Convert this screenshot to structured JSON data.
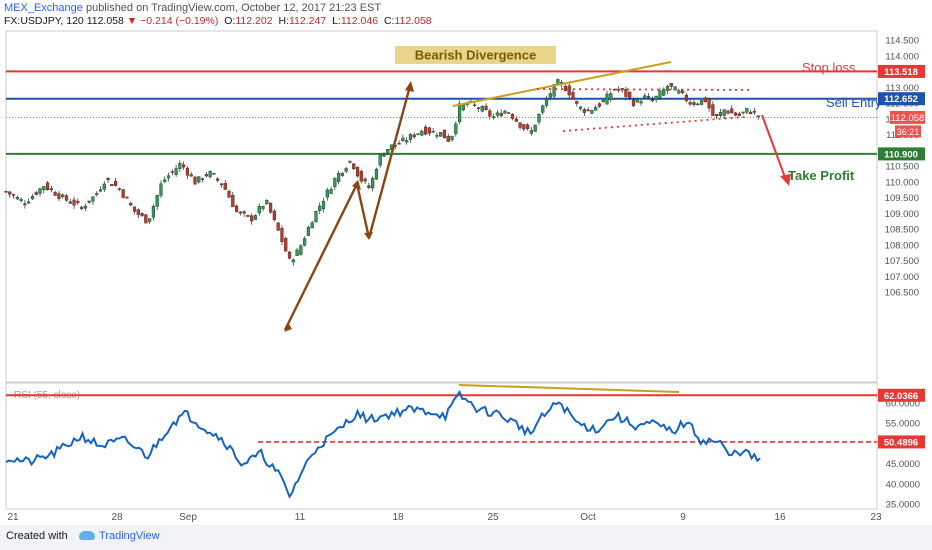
{
  "header": {
    "publisher": "MEX_Exchange",
    "published_text": "published on TradingView.com, October 12, 2017 21:23 EST",
    "symbol": "FX:USDJPY, 120",
    "last": "112.058",
    "change": "−0.214 (−0.19%)",
    "o_label": "O:",
    "o": "112.202",
    "h_label": "H:",
    "h": "112.247",
    "l_label": "L:",
    "l": "112.046",
    "c_label": "C:",
    "c": "112.058"
  },
  "footer": {
    "created_with": "Created with",
    "brand": "TradingView"
  },
  "colors": {
    "stop": "#e53935",
    "entry": "#1e54a8",
    "target": "#2e7d32",
    "div": "#c8a020",
    "arrow": "#8b4513",
    "rsi": "#1565c0"
  },
  "chart_data": [
    {
      "type": "candlestick",
      "symbol": "FX:USDJPY",
      "interval": "120",
      "ylim": [
        106.5,
        114.5
      ],
      "y_ticks": [
        "114.500",
        "114.000",
        "113.500",
        "113.000",
        "112.500",
        "112.000",
        "111.500",
        "111.000",
        "110.500",
        "110.000",
        "109.500",
        "109.000",
        "108.500",
        "108.000",
        "107.500",
        "107.000",
        "106.500"
      ],
      "x_ticks": [
        "21",
        "28",
        "Sep",
        "11",
        "18",
        "25",
        "Oct",
        "9",
        "16",
        "23"
      ],
      "price_path": [
        {
          "t": 0,
          "p": 109.7
        },
        {
          "t": 4,
          "p": 109.35
        },
        {
          "t": 8,
          "p": 109.9
        },
        {
          "t": 12,
          "p": 109.5
        },
        {
          "t": 16,
          "p": 109.2
        },
        {
          "t": 19,
          "p": 109.6
        },
        {
          "t": 21,
          "p": 110.1
        },
        {
          "t": 24,
          "p": 109.8
        },
        {
          "t": 27,
          "p": 109.1
        },
        {
          "t": 30,
          "p": 108.75
        },
        {
          "t": 33,
          "p": 110.0
        },
        {
          "t": 37,
          "p": 110.6
        },
        {
          "t": 40,
          "p": 110.0
        },
        {
          "t": 43,
          "p": 110.3
        },
        {
          "t": 46,
          "p": 109.9
        },
        {
          "t": 49,
          "p": 109.0
        },
        {
          "t": 52,
          "p": 108.85
        },
        {
          "t": 55,
          "p": 109.4
        },
        {
          "t": 58,
          "p": 108.3
        },
        {
          "t": 60,
          "p": 107.5
        },
        {
          "t": 62,
          "p": 107.85
        },
        {
          "t": 65,
          "p": 108.9
        },
        {
          "t": 70,
          "p": 110.2
        },
        {
          "t": 73,
          "p": 110.7
        },
        {
          "t": 75,
          "p": 110.1
        },
        {
          "t": 77,
          "p": 109.8
        },
        {
          "t": 79,
          "p": 110.8
        },
        {
          "t": 81,
          "p": 111.1
        },
        {
          "t": 84,
          "p": 111.3
        },
        {
          "t": 88,
          "p": 111.65
        },
        {
          "t": 92,
          "p": 111.55
        },
        {
          "t": 94,
          "p": 111.3
        },
        {
          "t": 96,
          "p": 112.4
        },
        {
          "t": 98,
          "p": 112.5
        },
        {
          "t": 101,
          "p": 112.3
        },
        {
          "t": 103,
          "p": 112.05
        },
        {
          "t": 106,
          "p": 112.3
        },
        {
          "t": 109,
          "p": 111.8
        },
        {
          "t": 111,
          "p": 111.55
        },
        {
          "t": 113,
          "p": 112.2
        },
        {
          "t": 115,
          "p": 112.8
        },
        {
          "t": 117,
          "p": 113.2
        },
        {
          "t": 119,
          "p": 112.9
        },
        {
          "t": 121,
          "p": 112.4
        },
        {
          "t": 123,
          "p": 112.25
        },
        {
          "t": 126,
          "p": 112.5
        },
        {
          "t": 129,
          "p": 113.0
        },
        {
          "t": 131,
          "p": 112.8
        },
        {
          "t": 133,
          "p": 112.5
        },
        {
          "t": 135,
          "p": 112.7
        },
        {
          "t": 137,
          "p": 112.6
        },
        {
          "t": 140,
          "p": 113.05
        },
        {
          "t": 142,
          "p": 112.9
        },
        {
          "t": 145,
          "p": 112.5
        },
        {
          "t": 148,
          "p": 112.6
        },
        {
          "t": 150,
          "p": 112.0
        },
        {
          "t": 152,
          "p": 112.3
        },
        {
          "t": 155,
          "p": 112.1
        },
        {
          "t": 157,
          "p": 112.3
        },
        {
          "t": 160,
          "p": 112.06
        }
      ],
      "levels": [
        {
          "name": "Stop loss",
          "value": 113.518,
          "label": "113.518"
        },
        {
          "name": "Sell Entry",
          "value": 112.652,
          "label": "112.652"
        },
        {
          "name": "Take Profit",
          "value": 110.9,
          "label": "110.900"
        }
      ],
      "current_price": {
        "value": 112.058,
        "label": "112.058",
        "countdown": "36:21"
      },
      "annotations": [
        "Bearish Divergence",
        "Stop loss",
        "Sell Entry",
        "Take Profit"
      ]
    },
    {
      "type": "line",
      "name": "RSI (55, close)",
      "ylim": [
        35,
        62.5
      ],
      "y_ticks": [
        "60.0000",
        "55.0000",
        "50.0000",
        "45.0000",
        "40.0000",
        "35.0000"
      ],
      "levels": [
        {
          "value": 62.0366,
          "label": "62.0366"
        },
        {
          "value": 50.4896,
          "label": "50.4896"
        }
      ],
      "rsi_path": [
        {
          "t": 0,
          "v": 46.5
        },
        {
          "t": 5,
          "v": 45.5
        },
        {
          "t": 10,
          "v": 47.5
        },
        {
          "t": 16,
          "v": 52.0
        },
        {
          "t": 20,
          "v": 49.5
        },
        {
          "t": 25,
          "v": 51.0
        },
        {
          "t": 30,
          "v": 47.0
        },
        {
          "t": 35,
          "v": 55.0
        },
        {
          "t": 38,
          "v": 57.5
        },
        {
          "t": 42,
          "v": 54.0
        },
        {
          "t": 46,
          "v": 51.0
        },
        {
          "t": 50,
          "v": 45.0
        },
        {
          "t": 54,
          "v": 47.5
        },
        {
          "t": 58,
          "v": 42.0
        },
        {
          "t": 60,
          "v": 37.0
        },
        {
          "t": 63,
          "v": 44.0
        },
        {
          "t": 66,
          "v": 49.5
        },
        {
          "t": 70,
          "v": 53.0
        },
        {
          "t": 74,
          "v": 57.5
        },
        {
          "t": 77,
          "v": 56.0
        },
        {
          "t": 80,
          "v": 57.0
        },
        {
          "t": 85,
          "v": 58.5
        },
        {
          "t": 90,
          "v": 58.0
        },
        {
          "t": 93,
          "v": 57.0
        },
        {
          "t": 96,
          "v": 62.0
        },
        {
          "t": 100,
          "v": 58.5
        },
        {
          "t": 104,
          "v": 57.5
        },
        {
          "t": 108,
          "v": 55.0
        },
        {
          "t": 111,
          "v": 52.5
        },
        {
          "t": 113,
          "v": 56.0
        },
        {
          "t": 117,
          "v": 60.5
        },
        {
          "t": 121,
          "v": 55.0
        },
        {
          "t": 125,
          "v": 53.5
        },
        {
          "t": 129,
          "v": 57.0
        },
        {
          "t": 133,
          "v": 54.5
        },
        {
          "t": 137,
          "v": 55.0
        },
        {
          "t": 141,
          "v": 53.0
        },
        {
          "t": 144,
          "v": 55.5
        },
        {
          "t": 147,
          "v": 51.0
        },
        {
          "t": 151,
          "v": 50.5
        },
        {
          "t": 153,
          "v": 47.0
        },
        {
          "t": 156,
          "v": 48.5
        },
        {
          "t": 158,
          "v": 46.5
        },
        {
          "t": 160,
          "v": 46.0
        }
      ],
      "annotations": [
        "bearish divergence trendline"
      ]
    }
  ]
}
